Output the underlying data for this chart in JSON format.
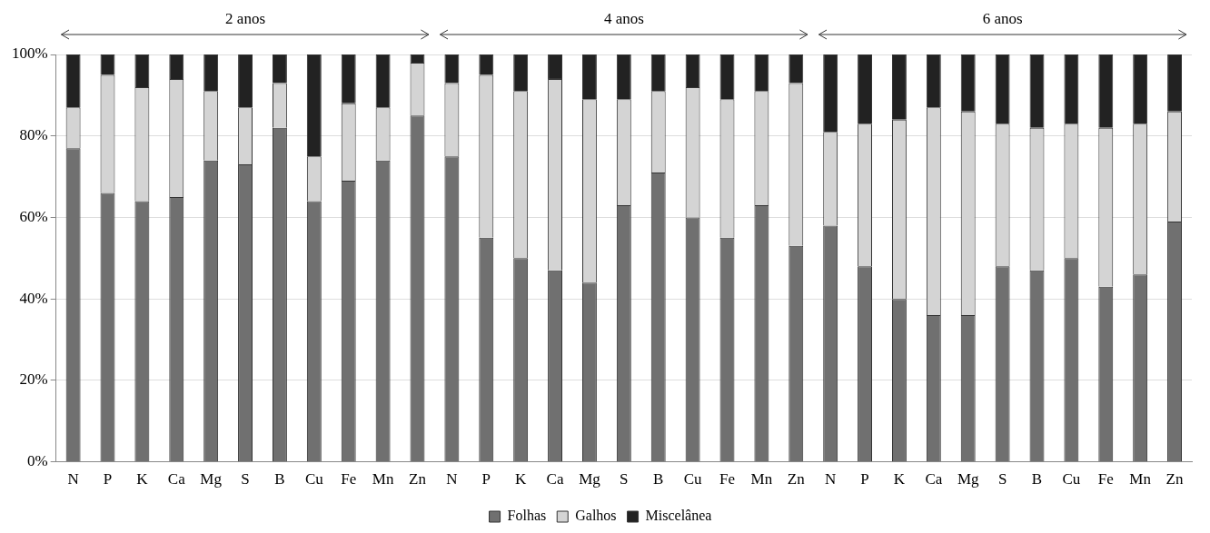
{
  "chart_data": {
    "type": "bar",
    "stacked": true,
    "categories": [
      "N",
      "P",
      "K",
      "Ca",
      "Mg",
      "S",
      "B",
      "Cu",
      "Fe",
      "Mn",
      "Zn",
      "N",
      "P",
      "K",
      "Ca",
      "Mg",
      "S",
      "B",
      "Cu",
      "Fe",
      "Mn",
      "Zn",
      "N",
      "P",
      "K",
      "Ca",
      "Mg",
      "S",
      "B",
      "Cu",
      "Fe",
      "Mn",
      "Zn"
    ],
    "series": [
      {
        "name": "Folhas",
        "color": "#707070",
        "values": [
          77,
          66,
          64,
          65,
          74,
          73,
          82,
          64,
          69,
          74,
          85,
          75,
          55,
          50,
          47,
          44,
          63,
          71,
          60,
          55,
          63,
          53,
          58,
          48,
          40,
          36,
          36,
          48,
          47,
          50,
          43,
          46,
          59
        ]
      },
      {
        "name": "Galhos",
        "color": "#d4d4d4",
        "values": [
          10,
          29,
          28,
          29,
          17,
          14,
          11,
          11,
          19,
          13,
          13,
          18,
          40,
          41,
          47,
          45,
          26,
          20,
          32,
          34,
          28,
          40,
          23,
          35,
          44,
          51,
          50,
          35,
          35,
          33,
          39,
          37,
          27
        ]
      },
      {
        "name": "Miscelânea",
        "color": "#222222",
        "values": [
          13,
          5,
          8,
          6,
          9,
          13,
          7,
          25,
          12,
          13,
          2,
          7,
          5,
          9,
          6,
          11,
          11,
          9,
          8,
          11,
          9,
          7,
          19,
          17,
          16,
          13,
          14,
          17,
          18,
          17,
          18,
          17,
          14
        ]
      }
    ],
    "ylim": [
      0,
      100
    ],
    "yticks": [
      {
        "value": 0,
        "label": "0%"
      },
      {
        "value": 20,
        "label": "20%"
      },
      {
        "value": 40,
        "label": "40%"
      },
      {
        "value": 60,
        "label": "60%"
      },
      {
        "value": 80,
        "label": "80%"
      },
      {
        "value": 100,
        "label": "100%"
      }
    ],
    "grid": "y",
    "legend": "bottom",
    "annotations": [
      "2 anos",
      "4 anos",
      "6 anos"
    ]
  }
}
